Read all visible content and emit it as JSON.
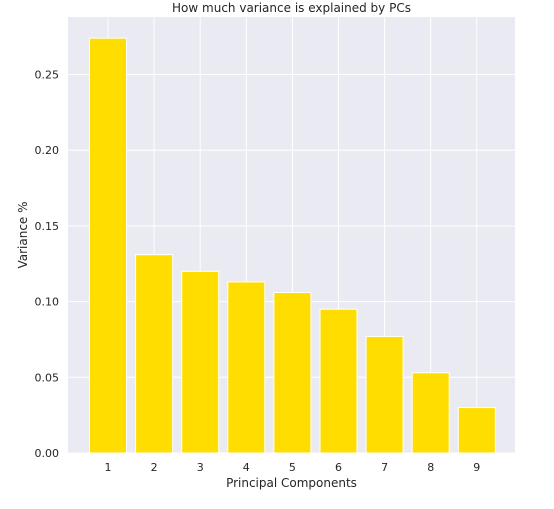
{
  "chart_data": {
    "type": "bar",
    "title": "How much variance is explained by PCs",
    "xlabel": "Principal Components",
    "ylabel": "Variance %",
    "categories": [
      "1",
      "2",
      "3",
      "4",
      "5",
      "6",
      "7",
      "8",
      "9"
    ],
    "values": [
      0.274,
      0.131,
      0.12,
      0.113,
      0.106,
      0.095,
      0.077,
      0.053,
      0.03
    ],
    "ylim": [
      0,
      0.288
    ],
    "yticks": [
      "0.00",
      "0.05",
      "0.10",
      "0.15",
      "0.20",
      "0.25"
    ],
    "grid": true,
    "colors": {
      "bar": "#FFDD00",
      "background": "#EAEAF2",
      "grid": "#FFFFFF"
    }
  }
}
